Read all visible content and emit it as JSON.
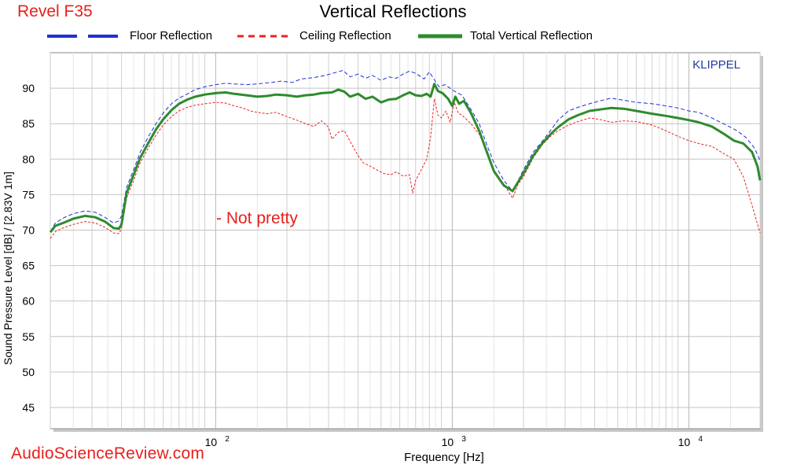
{
  "corner_tag": "Revel F35",
  "watermark": "AudioScienceReview.com",
  "klippel_label": "KLIPPEL",
  "note": "- Not pretty",
  "colors": {
    "floor": "#1f2fd9",
    "ceiling": "#ee2222",
    "total": "#2e8b2e",
    "grid": "#cfcfcf",
    "tag": "#e8201c"
  },
  "chart_data": {
    "type": "line",
    "title": "Vertical Reflections",
    "xlabel": "Frequency [Hz]",
    "ylabel": "Sound Pressure Level [dB]  / [2.83V 1m]",
    "xscale": "log",
    "xlim": [
      20,
      20000
    ],
    "ylim": [
      42,
      95
    ],
    "yticks": [
      45,
      50,
      55,
      60,
      65,
      70,
      75,
      80,
      85,
      90
    ],
    "xtick_labels": [
      {
        "value": 100,
        "base": "10",
        "exp": "2"
      },
      {
        "value": 1000,
        "base": "10",
        "exp": "3"
      },
      {
        "value": 10000,
        "base": "10",
        "exp": "4"
      }
    ],
    "grid": true,
    "legend_position": "top",
    "series": [
      {
        "name": "Floor Reflection",
        "style": "dashed-blue",
        "points": [
          [
            20,
            69.8
          ],
          [
            21,
            71
          ],
          [
            23,
            71.8
          ],
          [
            25,
            72.3
          ],
          [
            28,
            72.7
          ],
          [
            31,
            72.5
          ],
          [
            34,
            71.8
          ],
          [
            37,
            71
          ],
          [
            39,
            71.3
          ],
          [
            40,
            72
          ],
          [
            42,
            76
          ],
          [
            45,
            78.5
          ],
          [
            48,
            81
          ],
          [
            52,
            83.2
          ],
          [
            56,
            85
          ],
          [
            60,
            86.5
          ],
          [
            65,
            87.8
          ],
          [
            70,
            88.6
          ],
          [
            76,
            89.2
          ],
          [
            82,
            89.8
          ],
          [
            90,
            90.2
          ],
          [
            100,
            90.5
          ],
          [
            110,
            90.7
          ],
          [
            120,
            90.6
          ],
          [
            135,
            90.5
          ],
          [
            150,
            90.6
          ],
          [
            170,
            90.8
          ],
          [
            190,
            91
          ],
          [
            210,
            90.8
          ],
          [
            230,
            91.3
          ],
          [
            260,
            91.5
          ],
          [
            290,
            91.8
          ],
          [
            320,
            92.2
          ],
          [
            345,
            92.5
          ],
          [
            370,
            91.6
          ],
          [
            400,
            92
          ],
          [
            430,
            91.4
          ],
          [
            460,
            91.8
          ],
          [
            500,
            91.1
          ],
          [
            540,
            91.6
          ],
          [
            580,
            91.4
          ],
          [
            620,
            92
          ],
          [
            660,
            92.4
          ],
          [
            700,
            92.1
          ],
          [
            760,
            91.3
          ],
          [
            800,
            92.3
          ],
          [
            840,
            91.2
          ],
          [
            880,
            90.2
          ],
          [
            930,
            90.5
          ],
          [
            980,
            90
          ],
          [
            1030,
            89.5
          ],
          [
            1100,
            89
          ],
          [
            1200,
            87
          ],
          [
            1300,
            85
          ],
          [
            1400,
            82
          ],
          [
            1500,
            79.5
          ],
          [
            1650,
            77
          ],
          [
            1800,
            75.5
          ],
          [
            1900,
            77
          ],
          [
            2000,
            78.5
          ],
          [
            2200,
            81
          ],
          [
            2400,
            82.5
          ],
          [
            2600,
            84
          ],
          [
            2800,
            85.5
          ],
          [
            3100,
            86.8
          ],
          [
            3400,
            87.3
          ],
          [
            3800,
            87.8
          ],
          [
            4200,
            88.2
          ],
          [
            4700,
            88.6
          ],
          [
            5300,
            88.3
          ],
          [
            6000,
            88
          ],
          [
            7000,
            87.8
          ],
          [
            8000,
            87.5
          ],
          [
            9000,
            87.2
          ],
          [
            10000,
            86.8
          ],
          [
            11000,
            86.6
          ],
          [
            12500,
            85.8
          ],
          [
            14000,
            85
          ],
          [
            16000,
            84
          ],
          [
            17500,
            83
          ],
          [
            19000,
            81.5
          ],
          [
            20000,
            79.8
          ]
        ]
      },
      {
        "name": "Ceiling Reflection",
        "style": "dashed-red",
        "points": [
          [
            20,
            68.8
          ],
          [
            21,
            69.8
          ],
          [
            23,
            70.4
          ],
          [
            25,
            70.8
          ],
          [
            28,
            71.2
          ],
          [
            31,
            71
          ],
          [
            34,
            70.4
          ],
          [
            37,
            69.6
          ],
          [
            39,
            69.5
          ],
          [
            40,
            70.2
          ],
          [
            42,
            74.5
          ],
          [
            45,
            77
          ],
          [
            48,
            79.5
          ],
          [
            52,
            81.6
          ],
          [
            56,
            83.4
          ],
          [
            60,
            84.8
          ],
          [
            65,
            86
          ],
          [
            70,
            86.8
          ],
          [
            76,
            87.3
          ],
          [
            82,
            87.6
          ],
          [
            90,
            87.8
          ],
          [
            100,
            88
          ],
          [
            110,
            87.9
          ],
          [
            120,
            87.5
          ],
          [
            130,
            87.2
          ],
          [
            140,
            86.8
          ],
          [
            150,
            86.6
          ],
          [
            165,
            86.4
          ],
          [
            180,
            86.6
          ],
          [
            200,
            86
          ],
          [
            220,
            85.5
          ],
          [
            240,
            85
          ],
          [
            260,
            84.6
          ],
          [
            280,
            85.4
          ],
          [
            300,
            84.5
          ],
          [
            310,
            82.8
          ],
          [
            330,
            83.8
          ],
          [
            350,
            84
          ],
          [
            370,
            82.5
          ],
          [
            400,
            80.5
          ],
          [
            420,
            79.5
          ],
          [
            450,
            79
          ],
          [
            480,
            78.5
          ],
          [
            510,
            78
          ],
          [
            550,
            77.8
          ],
          [
            580,
            78.2
          ],
          [
            620,
            77.6
          ],
          [
            660,
            77.8
          ],
          [
            680,
            75.2
          ],
          [
            700,
            77
          ],
          [
            740,
            78.5
          ],
          [
            780,
            80
          ],
          [
            810,
            83
          ],
          [
            840,
            88.5
          ],
          [
            870,
            86.2
          ],
          [
            900,
            85.8
          ],
          [
            940,
            86.8
          ],
          [
            980,
            85.2
          ],
          [
            1020,
            88
          ],
          [
            1060,
            86.5
          ],
          [
            1100,
            86.2
          ],
          [
            1200,
            85
          ],
          [
            1300,
            83.5
          ],
          [
            1400,
            81
          ],
          [
            1500,
            78.5
          ],
          [
            1650,
            76.5
          ],
          [
            1800,
            74.5
          ],
          [
            1900,
            76.5
          ],
          [
            2000,
            77.5
          ],
          [
            2200,
            80.2
          ],
          [
            2400,
            82
          ],
          [
            2600,
            83.2
          ],
          [
            2800,
            84
          ],
          [
            3100,
            84.8
          ],
          [
            3400,
            85.3
          ],
          [
            3800,
            85.8
          ],
          [
            4200,
            85.6
          ],
          [
            4700,
            85.2
          ],
          [
            5300,
            85.4
          ],
          [
            6000,
            85.3
          ],
          [
            7000,
            84.8
          ],
          [
            8000,
            84
          ],
          [
            9000,
            83.2
          ],
          [
            10000,
            82.6
          ],
          [
            11000,
            82.2
          ],
          [
            12500,
            81.8
          ],
          [
            14000,
            80.8
          ],
          [
            15500,
            80
          ],
          [
            17000,
            77.5
          ],
          [
            18500,
            73.5
          ],
          [
            20000,
            69.6
          ]
        ]
      },
      {
        "name": "Total Vertical Reflection",
        "style": "solid-green",
        "points": [
          [
            20,
            69.7
          ],
          [
            21,
            70.6
          ],
          [
            23,
            71.1
          ],
          [
            25,
            71.6
          ],
          [
            28,
            72
          ],
          [
            31,
            71.8
          ],
          [
            34,
            71.2
          ],
          [
            37,
            70.3
          ],
          [
            39,
            70.2
          ],
          [
            40,
            70.8
          ],
          [
            42,
            75.2
          ],
          [
            45,
            77.8
          ],
          [
            48,
            80.2
          ],
          [
            52,
            82.3
          ],
          [
            56,
            84.2
          ],
          [
            60,
            85.6
          ],
          [
            65,
            86.9
          ],
          [
            70,
            87.8
          ],
          [
            76,
            88.4
          ],
          [
            82,
            88.8
          ],
          [
            90,
            89.1
          ],
          [
            100,
            89.3
          ],
          [
            110,
            89.4
          ],
          [
            120,
            89.2
          ],
          [
            135,
            89
          ],
          [
            150,
            88.8
          ],
          [
            165,
            88.9
          ],
          [
            180,
            89.1
          ],
          [
            200,
            89
          ],
          [
            220,
            88.8
          ],
          [
            240,
            89
          ],
          [
            260,
            89.1
          ],
          [
            280,
            89.3
          ],
          [
            310,
            89.4
          ],
          [
            330,
            89.8
          ],
          [
            350,
            89.5
          ],
          [
            370,
            88.8
          ],
          [
            400,
            89.2
          ],
          [
            430,
            88.5
          ],
          [
            460,
            88.8
          ],
          [
            500,
            88
          ],
          [
            540,
            88.4
          ],
          [
            580,
            88.5
          ],
          [
            620,
            89
          ],
          [
            660,
            89.4
          ],
          [
            700,
            89
          ],
          [
            740,
            88.9
          ],
          [
            780,
            89.2
          ],
          [
            810,
            88.8
          ],
          [
            840,
            90.6
          ],
          [
            870,
            89.6
          ],
          [
            910,
            89.3
          ],
          [
            960,
            88.5
          ],
          [
            1000,
            87.5
          ],
          [
            1030,
            88.8
          ],
          [
            1070,
            87.8
          ],
          [
            1120,
            88.2
          ],
          [
            1200,
            86.5
          ],
          [
            1300,
            84
          ],
          [
            1400,
            81
          ],
          [
            1500,
            78.3
          ],
          [
            1650,
            76.3
          ],
          [
            1800,
            75.5
          ],
          [
            1900,
            76.8
          ],
          [
            2000,
            78
          ],
          [
            2200,
            80.5
          ],
          [
            2400,
            82.2
          ],
          [
            2600,
            83.5
          ],
          [
            2800,
            84.5
          ],
          [
            3100,
            85.6
          ],
          [
            3400,
            86.2
          ],
          [
            3800,
            86.8
          ],
          [
            4200,
            87
          ],
          [
            4700,
            87.2
          ],
          [
            5300,
            87.1
          ],
          [
            6000,
            86.8
          ],
          [
            7000,
            86.4
          ],
          [
            8000,
            86.1
          ],
          [
            9000,
            85.8
          ],
          [
            10000,
            85.5
          ],
          [
            11000,
            85.2
          ],
          [
            12500,
            84.6
          ],
          [
            14000,
            83.6
          ],
          [
            15500,
            82.6
          ],
          [
            17000,
            82.2
          ],
          [
            18500,
            81
          ],
          [
            19500,
            79
          ],
          [
            20000,
            77
          ]
        ]
      }
    ]
  }
}
